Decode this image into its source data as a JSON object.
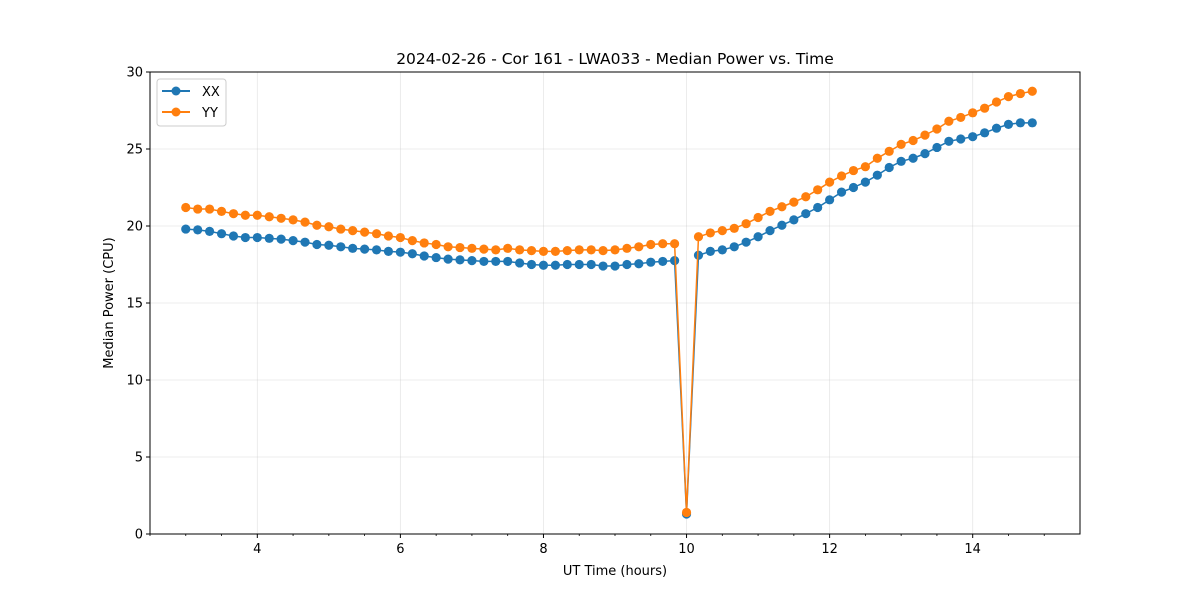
{
  "chart_data": {
    "type": "line",
    "title": "2024-02-26 - Cor 161 - LWA033 - Median Power vs. Time",
    "xlabel": "UT Time (hours)",
    "ylabel": "Median Power (CPU)",
    "xlim": [
      2.5,
      15.5
    ],
    "ylim": [
      0,
      30
    ],
    "xticks": [
      4,
      6,
      8,
      10,
      12,
      14
    ],
    "yticks": [
      0,
      5,
      10,
      15,
      20,
      25,
      30
    ],
    "xtick_labels": [
      "4",
      "6",
      "8",
      "10",
      "12",
      "14"
    ],
    "ytick_labels": [
      "0",
      "5",
      "10",
      "15",
      "20",
      "25",
      "30"
    ],
    "grid": true,
    "legend_position": "upper-left",
    "x": [
      3.0,
      3.167,
      3.333,
      3.5,
      3.667,
      3.833,
      4.0,
      4.167,
      4.333,
      4.5,
      4.667,
      4.833,
      5.0,
      5.167,
      5.333,
      5.5,
      5.667,
      5.833,
      6.0,
      6.167,
      6.333,
      6.5,
      6.667,
      6.833,
      7.0,
      7.167,
      7.333,
      7.5,
      7.667,
      7.833,
      8.0,
      8.167,
      8.333,
      8.5,
      8.667,
      8.833,
      9.0,
      9.167,
      9.333,
      9.5,
      9.667,
      9.833,
      10.0,
      10.167,
      10.333,
      10.5,
      10.667,
      10.833,
      11.0,
      11.167,
      11.333,
      11.5,
      11.667,
      11.833,
      12.0,
      12.167,
      12.333,
      12.5,
      12.667,
      12.833,
      13.0,
      13.167,
      13.333,
      13.5,
      13.667,
      13.833,
      14.0,
      14.167,
      14.333,
      14.5,
      14.667,
      14.833
    ],
    "series": [
      {
        "name": "XX",
        "color": "#1f77b4",
        "values": [
          19.8,
          19.75,
          19.65,
          19.5,
          19.35,
          19.25,
          19.25,
          19.2,
          19.15,
          19.05,
          18.95,
          18.8,
          18.75,
          18.65,
          18.55,
          18.5,
          18.45,
          18.35,
          18.3,
          18.2,
          18.05,
          17.95,
          17.85,
          17.8,
          17.75,
          17.7,
          17.7,
          17.7,
          17.6,
          17.5,
          17.45,
          17.45,
          17.5,
          17.5,
          17.5,
          17.4,
          17.4,
          17.5,
          17.55,
          17.65,
          17.7,
          17.75,
          1.3,
          18.1,
          18.35,
          18.45,
          18.65,
          18.95,
          19.3,
          19.7,
          20.05,
          20.4,
          20.8,
          21.2,
          21.7,
          22.2,
          22.5,
          22.85,
          23.3,
          23.8,
          24.2,
          24.4,
          24.7,
          25.1,
          25.5,
          25.65,
          25.8,
          26.05,
          26.35,
          26.6,
          26.7,
          26.7
        ]
      },
      {
        "name": "YY",
        "color": "#ff7f0e",
        "values": [
          21.2,
          21.1,
          21.1,
          20.95,
          20.8,
          20.7,
          20.7,
          20.6,
          20.5,
          20.4,
          20.25,
          20.05,
          19.95,
          19.8,
          19.7,
          19.6,
          19.5,
          19.35,
          19.25,
          19.05,
          18.9,
          18.8,
          18.65,
          18.6,
          18.55,
          18.5,
          18.45,
          18.55,
          18.45,
          18.4,
          18.35,
          18.35,
          18.4,
          18.45,
          18.45,
          18.4,
          18.45,
          18.55,
          18.65,
          18.8,
          18.85,
          18.85,
          1.4,
          19.3,
          19.55,
          19.7,
          19.85,
          20.15,
          20.55,
          20.95,
          21.25,
          21.55,
          21.9,
          22.35,
          22.85,
          23.25,
          23.6,
          23.85,
          24.4,
          24.85,
          25.3,
          25.55,
          25.9,
          26.3,
          26.8,
          27.05,
          27.35,
          27.65,
          28.05,
          28.4,
          28.6,
          28.75
        ]
      }
    ]
  }
}
